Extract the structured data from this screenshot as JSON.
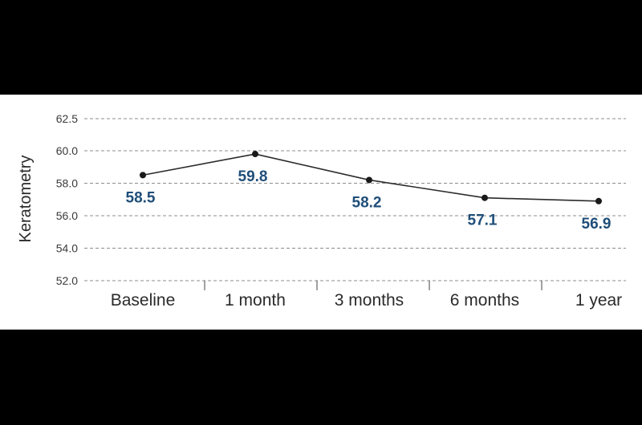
{
  "chart_data": {
    "type": "line",
    "title": "",
    "xlabel": "",
    "ylabel": "Keratometry",
    "categories": [
      "Baseline",
      "1 month",
      "3 months",
      "6 months",
      "1 year"
    ],
    "values": [
      58.5,
      59.8,
      58.2,
      57.1,
      56.9
    ],
    "data_labels": [
      "58.5",
      "59.8",
      "58.2",
      "57.1",
      "56.9"
    ],
    "yticks": [
      "52.0",
      "54.0",
      "56.0",
      "58.0",
      "60.0",
      "62.5"
    ],
    "ylim": [
      52.0,
      62.5
    ],
    "grid": "horizontal dashed",
    "line_color": "#2b2b2b",
    "label_color": "#1f4e79"
  }
}
